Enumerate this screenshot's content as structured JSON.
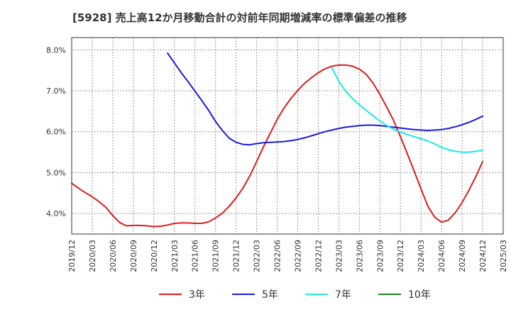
{
  "title": "[5928]  売上高12か月移動合計の対前年同期増減率の標準偏差の推移",
  "chart_data": {
    "type": "line",
    "title": "[5928]  売上高12か月移動合計の対前年同期増減率の標準偏差の推移",
    "xlabel": "",
    "ylabel": "",
    "x_ticks": [
      "2019/12",
      "2020/03",
      "2020/06",
      "2020/09",
      "2020/12",
      "2021/03",
      "2021/06",
      "2021/09",
      "2021/12",
      "2022/03",
      "2022/06",
      "2022/09",
      "2022/12",
      "2023/03",
      "2023/06",
      "2023/09",
      "2023/12",
      "2024/03",
      "2024/06",
      "2024/09",
      "2024/12",
      "2025/03"
    ],
    "y_ticks": [
      "4.0%",
      "5.0%",
      "6.0%",
      "7.0%",
      "8.0%"
    ],
    "ylim": [
      3.5,
      8.3
    ],
    "grid": true,
    "legend_position": "bottom",
    "series": [
      {
        "name": "3年",
        "color": "#dd1c1c",
        "values": [
          [
            "2019/12",
            4.74
          ],
          [
            "2020/01",
            4.62
          ],
          [
            "2020/02",
            4.51
          ],
          [
            "2020/03",
            4.41
          ],
          [
            "2020/04",
            4.29
          ],
          [
            "2020/05",
            4.15
          ],
          [
            "2020/06",
            3.95
          ],
          [
            "2020/07",
            3.78
          ],
          [
            "2020/08",
            3.7
          ],
          [
            "2020/09",
            3.71
          ],
          [
            "2020/10",
            3.71
          ],
          [
            "2020/11",
            3.7
          ],
          [
            "2020/12",
            3.68
          ],
          [
            "2021/01",
            3.69
          ],
          [
            "2021/02",
            3.72
          ],
          [
            "2021/03",
            3.76
          ],
          [
            "2021/04",
            3.77
          ],
          [
            "2021/05",
            3.77
          ],
          [
            "2021/06",
            3.76
          ],
          [
            "2021/07",
            3.76
          ],
          [
            "2021/08",
            3.8
          ],
          [
            "2021/09",
            3.89
          ],
          [
            "2021/10",
            4.01
          ],
          [
            "2021/11",
            4.18
          ],
          [
            "2021/12",
            4.38
          ],
          [
            "2022/01",
            4.62
          ],
          [
            "2022/02",
            4.92
          ],
          [
            "2022/03",
            5.27
          ],
          [
            "2022/04",
            5.63
          ],
          [
            "2022/05",
            5.97
          ],
          [
            "2022/06",
            6.3
          ],
          [
            "2022/07",
            6.58
          ],
          [
            "2022/08",
            6.81
          ],
          [
            "2022/09",
            7.01
          ],
          [
            "2022/10",
            7.18
          ],
          [
            "2022/11",
            7.32
          ],
          [
            "2022/12",
            7.44
          ],
          [
            "2023/01",
            7.54
          ],
          [
            "2023/02",
            7.6
          ],
          [
            "2023/03",
            7.63
          ],
          [
            "2023/04",
            7.63
          ],
          [
            "2023/05",
            7.6
          ],
          [
            "2023/06",
            7.53
          ],
          [
            "2023/07",
            7.4
          ],
          [
            "2023/08",
            7.19
          ],
          [
            "2023/09",
            6.91
          ],
          [
            "2023/10",
            6.6
          ],
          [
            "2023/11",
            6.27
          ],
          [
            "2023/12",
            5.88
          ],
          [
            "2024/01",
            5.46
          ],
          [
            "2024/02",
            5.04
          ],
          [
            "2024/03",
            4.6
          ],
          [
            "2024/04",
            4.18
          ],
          [
            "2024/05",
            3.91
          ],
          [
            "2024/06",
            3.79
          ],
          [
            "2024/07",
            3.84
          ],
          [
            "2024/08",
            4.02
          ],
          [
            "2024/09",
            4.27
          ],
          [
            "2024/10",
            4.57
          ],
          [
            "2024/11",
            4.9
          ],
          [
            "2024/12",
            5.27
          ]
        ]
      },
      {
        "name": "5年",
        "color": "#1a1adb",
        "values": [
          [
            "2021/02",
            7.92
          ],
          [
            "2021/03",
            7.68
          ],
          [
            "2021/04",
            7.44
          ],
          [
            "2021/05",
            7.22
          ],
          [
            "2021/06",
            6.99
          ],
          [
            "2021/07",
            6.76
          ],
          [
            "2021/08",
            6.52
          ],
          [
            "2021/09",
            6.25
          ],
          [
            "2021/10",
            6.03
          ],
          [
            "2021/11",
            5.84
          ],
          [
            "2021/12",
            5.74
          ],
          [
            "2022/01",
            5.69
          ],
          [
            "2022/02",
            5.68
          ],
          [
            "2022/03",
            5.71
          ],
          [
            "2022/04",
            5.73
          ],
          [
            "2022/05",
            5.74
          ],
          [
            "2022/06",
            5.75
          ],
          [
            "2022/07",
            5.76
          ],
          [
            "2022/08",
            5.78
          ],
          [
            "2022/09",
            5.81
          ],
          [
            "2022/10",
            5.85
          ],
          [
            "2022/11",
            5.9
          ],
          [
            "2022/12",
            5.95
          ],
          [
            "2023/01",
            6.0
          ],
          [
            "2023/02",
            6.04
          ],
          [
            "2023/03",
            6.08
          ],
          [
            "2023/04",
            6.11
          ],
          [
            "2023/05",
            6.13
          ],
          [
            "2023/06",
            6.15
          ],
          [
            "2023/07",
            6.16
          ],
          [
            "2023/08",
            6.16
          ],
          [
            "2023/09",
            6.15
          ],
          [
            "2023/10",
            6.13
          ],
          [
            "2023/11",
            6.11
          ],
          [
            "2023/12",
            6.09
          ],
          [
            "2024/01",
            6.07
          ],
          [
            "2024/02",
            6.05
          ],
          [
            "2024/03",
            6.04
          ],
          [
            "2024/04",
            6.03
          ],
          [
            "2024/05",
            6.04
          ],
          [
            "2024/06",
            6.05
          ],
          [
            "2024/07",
            6.08
          ],
          [
            "2024/08",
            6.12
          ],
          [
            "2024/09",
            6.17
          ],
          [
            "2024/10",
            6.23
          ],
          [
            "2024/11",
            6.3
          ],
          [
            "2024/12",
            6.38
          ]
        ]
      },
      {
        "name": "7年",
        "color": "#1ae8e8",
        "values": [
          [
            "2023/02",
            7.56
          ],
          [
            "2023/03",
            7.23
          ],
          [
            "2023/04",
            6.99
          ],
          [
            "2023/05",
            6.81
          ],
          [
            "2023/06",
            6.66
          ],
          [
            "2023/07",
            6.52
          ],
          [
            "2023/08",
            6.39
          ],
          [
            "2023/09",
            6.26
          ],
          [
            "2023/10",
            6.15
          ],
          [
            "2023/11",
            6.06
          ],
          [
            "2023/12",
            5.99
          ],
          [
            "2024/01",
            5.93
          ],
          [
            "2024/02",
            5.88
          ],
          [
            "2024/03",
            5.83
          ],
          [
            "2024/04",
            5.77
          ],
          [
            "2024/05",
            5.7
          ],
          [
            "2024/06",
            5.62
          ],
          [
            "2024/07",
            5.56
          ],
          [
            "2024/08",
            5.52
          ],
          [
            "2024/09",
            5.5
          ],
          [
            "2024/10",
            5.5
          ],
          [
            "2024/11",
            5.52
          ],
          [
            "2024/12",
            5.55
          ]
        ]
      },
      {
        "name": "10年",
        "color": "#1a8a1a",
        "values": []
      }
    ]
  }
}
